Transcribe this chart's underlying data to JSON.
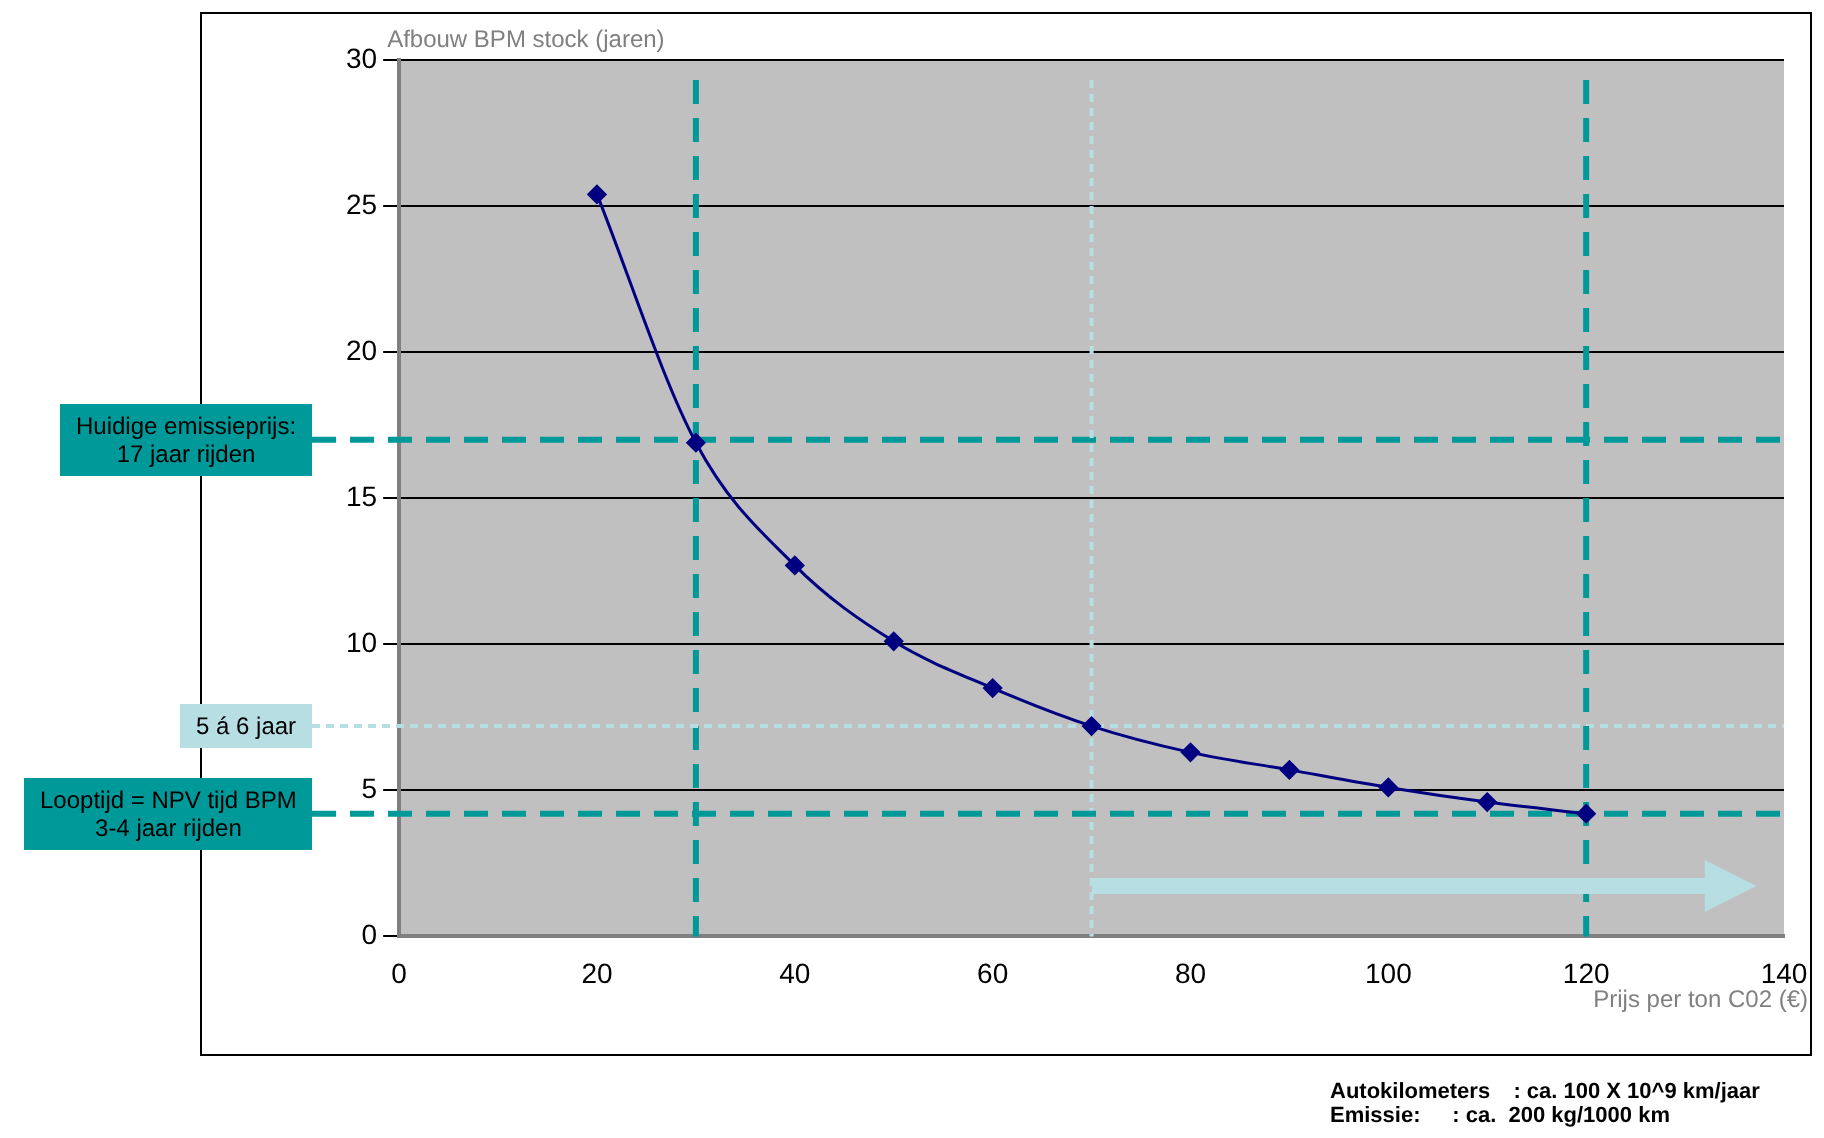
{
  "chart_data": {
    "type": "line",
    "ylabel": "Afbouw BPM stock (jaren)",
    "xlabel": "Prijs per ton C02 (€)",
    "x": [
      20,
      30,
      40,
      50,
      60,
      70,
      80,
      90,
      100,
      110,
      120
    ],
    "series": [
      {
        "color": "#000080",
        "values": [
          25.4,
          16.9,
          12.7,
          10.1,
          8.5,
          7.2,
          6.3,
          5.7,
          5.1,
          4.6,
          4.2
        ]
      }
    ],
    "xlim": [
      0,
      140
    ],
    "xticks": [
      0,
      20,
      40,
      60,
      80,
      100,
      120,
      140
    ],
    "ylim": [
      0,
      30
    ],
    "yticks": [
      0,
      5,
      10,
      15,
      20,
      25,
      30
    ],
    "grid": "y",
    "legend": false,
    "marker": "diamond",
    "line_style": "solid",
    "ref_lines": [
      {
        "axis": "y",
        "value": 17,
        "label": "Huidige emissieprijs:\n17 jaar rijden",
        "color": "#009999",
        "line_style": "dashed"
      },
      {
        "axis": "x",
        "value": 30,
        "color": "#009999",
        "line_style": "dashed"
      },
      {
        "axis": "y",
        "value": 7.2,
        "label": "5 á 6 jaar",
        "color": "#b7dfe3",
        "line_style": "dotted"
      },
      {
        "axis": "x",
        "value": 70,
        "color": "#b7dfe3",
        "line_style": "dotted"
      },
      {
        "axis": "y",
        "value": 4.2,
        "label": "Looptijd = NPV tijd BPM\n3-4 jaar rijden",
        "color": "#009999",
        "line_style": "dashed"
      },
      {
        "axis": "x",
        "value": 120,
        "color": "#009999",
        "line_style": "dashed"
      }
    ],
    "annotations": [
      "Autokilometers\t: ca. 100 X 10^9 km/jaar",
      "Emissie:\t: ca.  200 kg/1000 km"
    ]
  }
}
